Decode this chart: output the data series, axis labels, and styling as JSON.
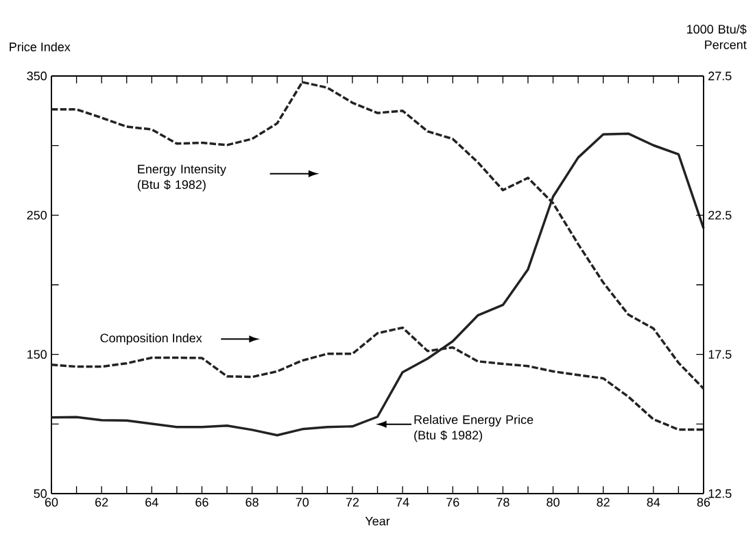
{
  "chart_data": {
    "type": "line",
    "xlabel": "Year",
    "ylabel": "Price Index",
    "y2label": "1000 Btu/$ Percent",
    "x": [
      60,
      61,
      62,
      63,
      64,
      65,
      66,
      67,
      68,
      69,
      70,
      71,
      72,
      73,
      74,
      75,
      76,
      77,
      78,
      79,
      80,
      81,
      82,
      83,
      84,
      85,
      86
    ],
    "xlim": [
      60,
      86
    ],
    "xticks": [
      60,
      {
        "value": 61,
        "label": null
      },
      62,
      {
        "value": 63,
        "label": null
      },
      64,
      {
        "value": 65,
        "label": null
      },
      66,
      {
        "value": 67,
        "label": null
      },
      68,
      {
        "value": 69,
        "label": null
      },
      70,
      {
        "value": 71,
        "label": null
      },
      72,
      {
        "value": 73,
        "label": null
      },
      74,
      {
        "value": 75,
        "label": null
      },
      76,
      {
        "value": 77,
        "label": null
      },
      78,
      {
        "value": 79,
        "label": null
      },
      80,
      {
        "value": 81,
        "label": null
      },
      82,
      {
        "value": 83,
        "label": null
      },
      84,
      {
        "value": 85,
        "label": null
      },
      86
    ],
    "ylim": [
      50,
      350
    ],
    "yticks": [
      50,
      {
        "value": 100,
        "label": null
      },
      150,
      {
        "value": 200,
        "label": null
      },
      250,
      {
        "value": 300,
        "label": null
      },
      350
    ],
    "y2lim": [
      12.5,
      27.5
    ],
    "y2ticks": [
      12.5,
      {
        "value": 15,
        "label": null
      },
      17.5,
      {
        "value": 20,
        "label": null
      },
      22.5,
      {
        "value": 25,
        "label": null
      },
      27.5
    ],
    "grid": false,
    "legend": false,
    "marker": "none",
    "series": [
      {
        "name": "Energy Intensity (Btu $ 1982)",
        "color": "#222222",
        "axis": "y2",
        "line_style": "dashed",
        "values": [
          26.3,
          26.3,
          26.0,
          25.68,
          25.58,
          25.07,
          25.1,
          25.02,
          25.24,
          25.8,
          27.28,
          27.08,
          26.54,
          26.17,
          26.25,
          25.51,
          25.24,
          24.4,
          23.4,
          23.84,
          22.93,
          21.46,
          20.08,
          18.93,
          18.43,
          17.2,
          16.27
        ]
      },
      {
        "name": "Composition Index",
        "color": "#222222",
        "axis": "y2",
        "line_style": "dashed",
        "values": [
          17.13,
          17.06,
          17.06,
          17.18,
          17.38,
          17.38,
          17.37,
          16.71,
          16.69,
          16.89,
          17.28,
          17.52,
          17.52,
          18.26,
          18.46,
          17.62,
          17.75,
          17.25,
          17.16,
          17.08,
          16.89,
          16.76,
          16.64,
          15.98,
          15.17,
          14.8,
          14.8
        ]
      },
      {
        "name": "Relative Energy Price (Btu $ 1982)",
        "color": "#222222",
        "line_style": "solid",
        "values": [
          104.7,
          105,
          102.7,
          102.5,
          100.2,
          97.8,
          97.8,
          98.8,
          95.8,
          91.9,
          96.3,
          97.8,
          98.3,
          105.2,
          137.2,
          147.0,
          159.4,
          178.0,
          185.5,
          211.1,
          263.3,
          291.4,
          308.1,
          308.6,
          300.2,
          293.8,
          240.6
        ]
      }
    ]
  }
}
